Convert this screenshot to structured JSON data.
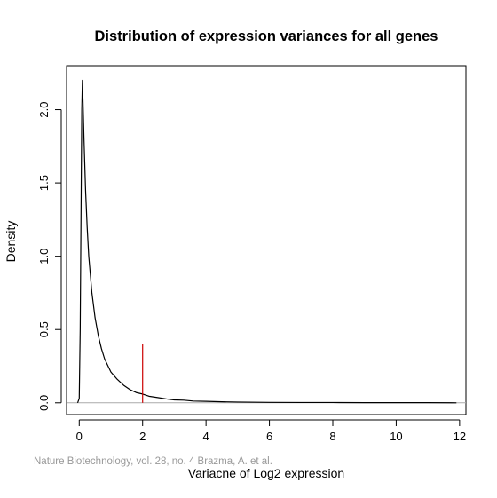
{
  "chart_data": {
    "type": "line",
    "title": "Distribution of expression variances for all genes",
    "xlabel": "Variacne of Log2 expression",
    "ylabel": "Density",
    "xlim": [
      -0.4,
      12.2
    ],
    "ylim": [
      -0.08,
      2.3
    ],
    "xticks": [
      0,
      2,
      4,
      6,
      8,
      10,
      12
    ],
    "xtick_labels": [
      "0",
      "2",
      "4",
      "6",
      "8",
      "10",
      "12"
    ],
    "yticks": [
      0.0,
      0.5,
      1.0,
      1.5,
      2.0
    ],
    "ytick_labels": [
      "0.0",
      "0.5",
      "1.0",
      "1.5",
      "2.0"
    ],
    "grid": false,
    "baseline": 0,
    "series": [
      {
        "x": [
          -0.05,
          0.0,
          0.03,
          0.06,
          0.08,
          0.1,
          0.12,
          0.15,
          0.2,
          0.25,
          0.3,
          0.4,
          0.5,
          0.6,
          0.7,
          0.8,
          1.0,
          1.2,
          1.4,
          1.6,
          1.8,
          2.0,
          2.2,
          2.5,
          2.8,
          3.0,
          3.3,
          3.6,
          4.0,
          4.5,
          5.0,
          6.0,
          7.0,
          8.0,
          9.0,
          10.0,
          11.0,
          11.9
        ],
        "y": [
          0.0,
          0.03,
          0.5,
          1.4,
          2.0,
          2.2,
          2.05,
          1.8,
          1.45,
          1.2,
          1.0,
          0.75,
          0.58,
          0.46,
          0.37,
          0.3,
          0.21,
          0.16,
          0.12,
          0.09,
          0.07,
          0.06,
          0.045,
          0.035,
          0.025,
          0.02,
          0.018,
          0.012,
          0.01,
          0.007,
          0.005,
          0.003,
          0.002,
          0.002,
          0.001,
          0.001,
          0.001,
          0.0
        ],
        "color": "#000000"
      }
    ],
    "annotations": [
      {
        "type": "vline",
        "x": 2,
        "y_from": 0,
        "y_to": 0.4,
        "color": "#cc0000"
      }
    ],
    "caption": "Nature Biotechnology, vol. 28, no. 4 Brazma, A. et al."
  }
}
